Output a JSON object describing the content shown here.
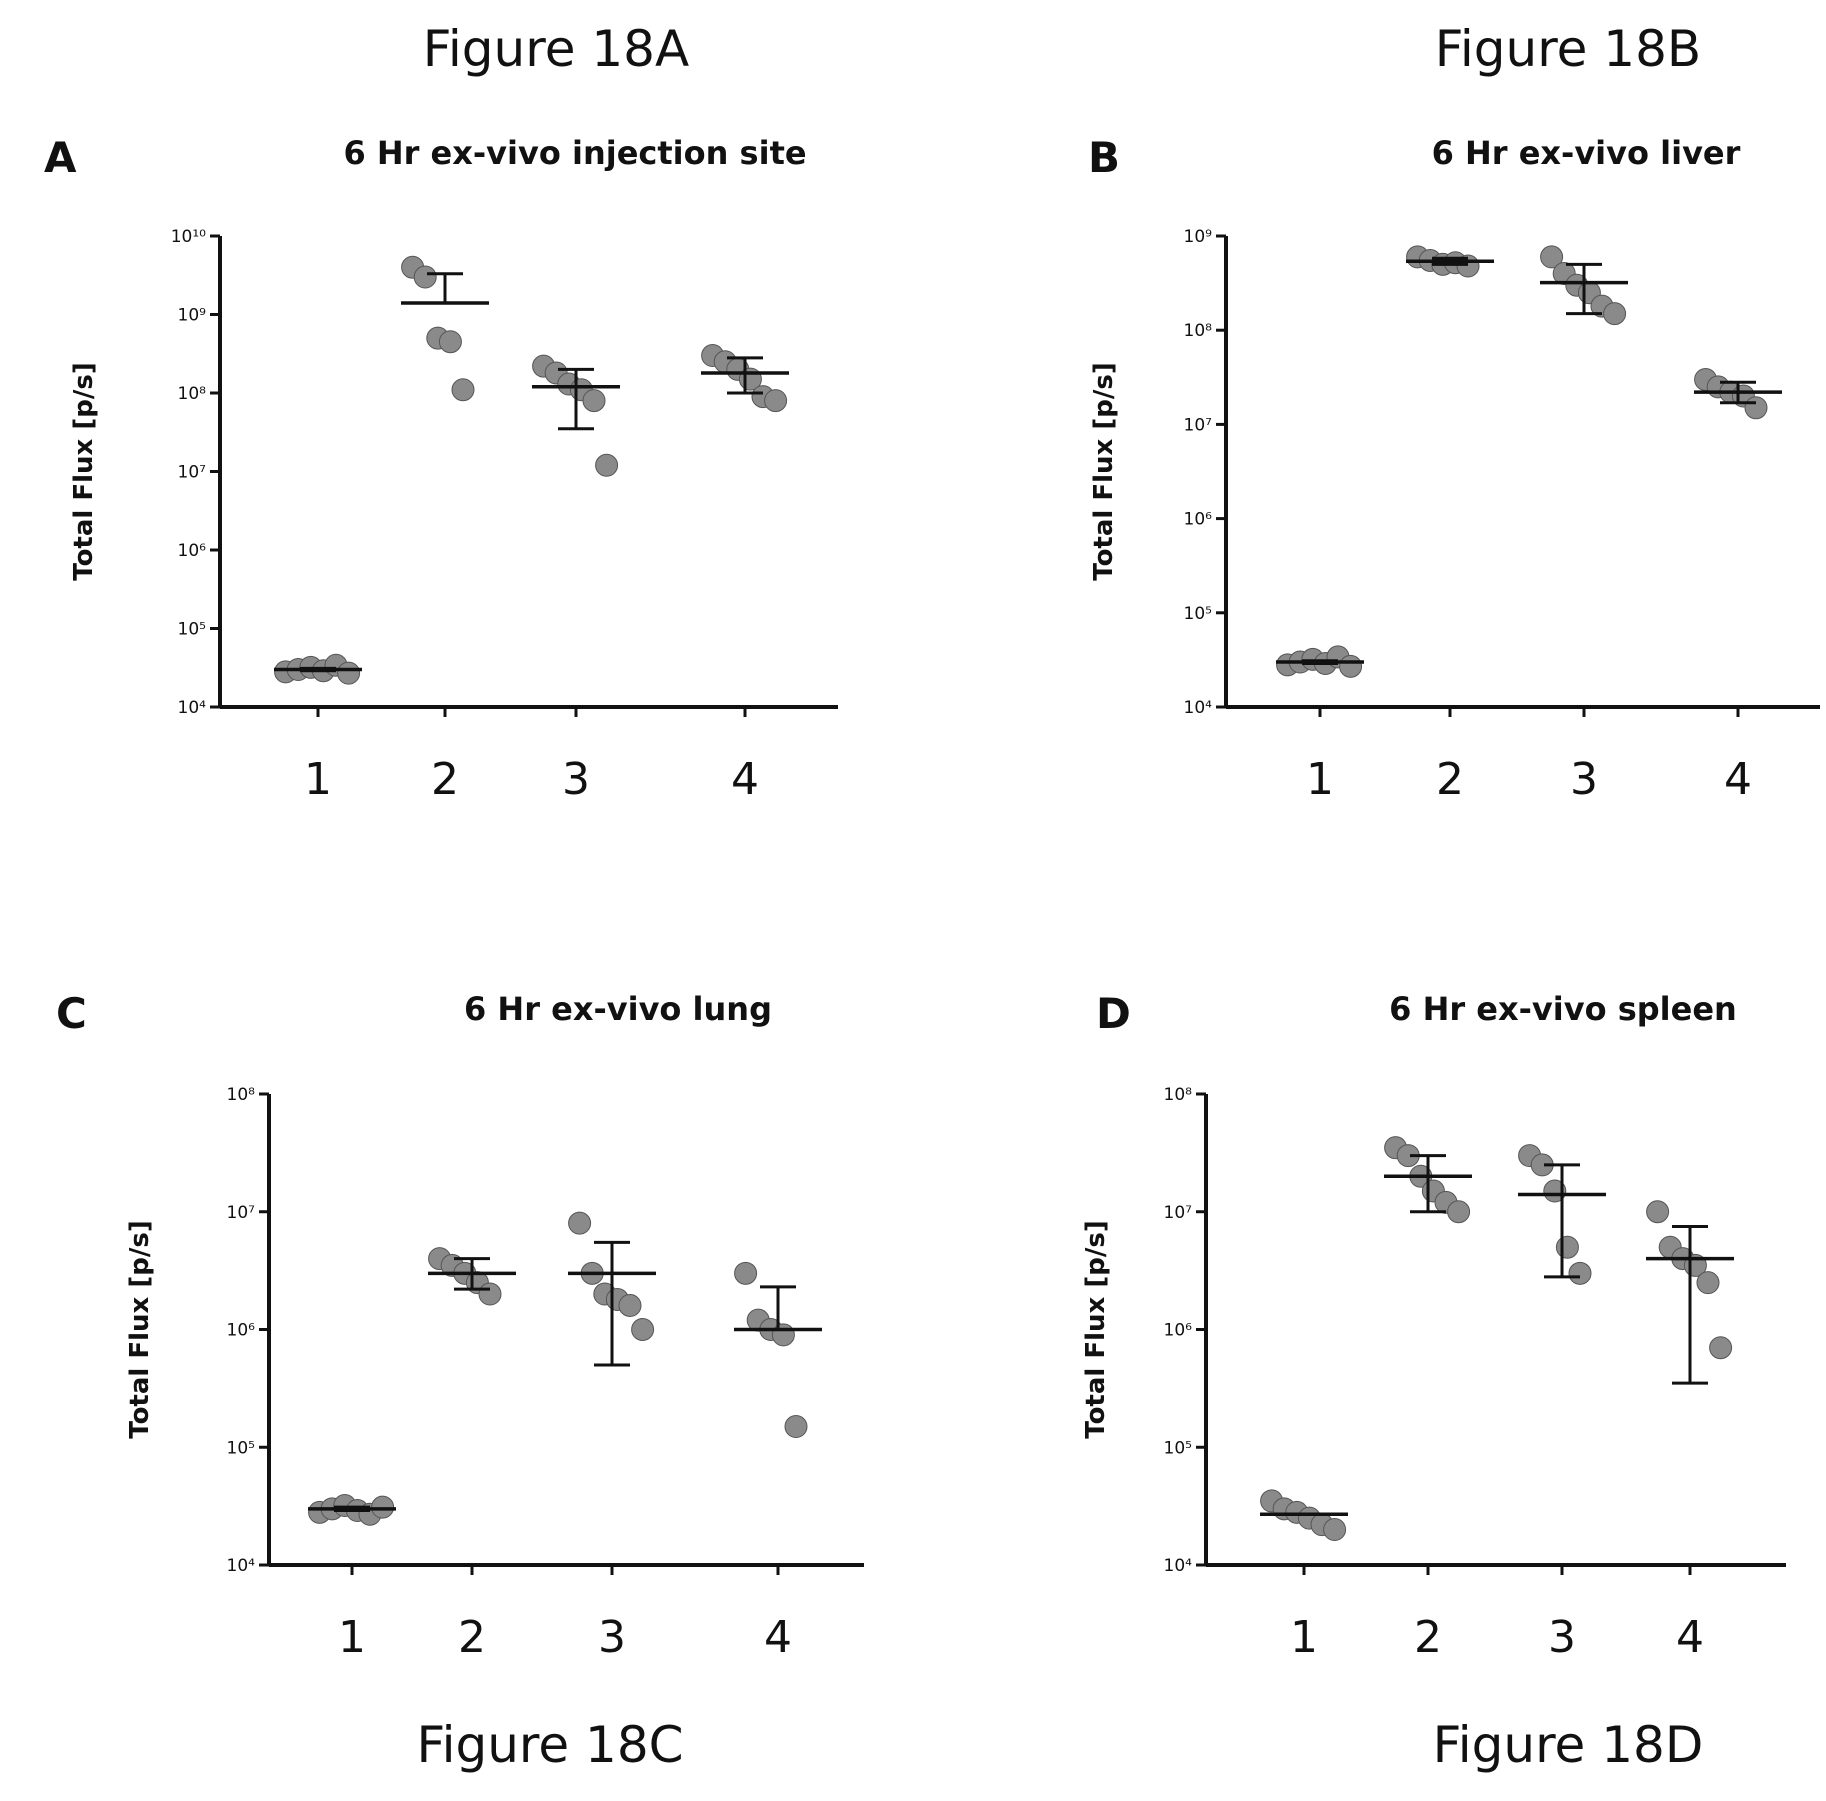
{
  "captions": [
    "Figure 18A",
    "Figure 18B",
    "Figure 18C",
    "Figure 18D"
  ],
  "chart_data": [
    {
      "type": "scatter",
      "panel": "A",
      "title": "6 Hr ex-vivo injection site",
      "ylabel": "Total Flux [p/s]",
      "yscale": "log",
      "ylim": [
        10000,
        10000000000
      ],
      "yticks": [
        "10⁴",
        "10⁵",
        "10⁶",
        "10⁷",
        "10⁸",
        "10⁹",
        "10¹⁰"
      ],
      "categories": [
        "1",
        "2",
        "3",
        "4"
      ],
      "groups": [
        {
          "points": [
            28000,
            30000,
            32000,
            29000,
            34000,
            27000
          ],
          "mean": 30000,
          "err": [
            29000,
            31000
          ]
        },
        {
          "points": [
            4000000000,
            3000000000,
            500000000,
            450000000,
            110000000
          ],
          "mean": 1400000000,
          "err": [
            1400000000,
            3300000000
          ]
        },
        {
          "points": [
            220000000,
            180000000,
            130000000,
            110000000,
            80000000,
            12000000
          ],
          "mean": 120000000,
          "err": [
            35000000,
            200000000
          ]
        },
        {
          "points": [
            300000000,
            250000000,
            200000000,
            150000000,
            90000000,
            80000000
          ],
          "mean": 180000000,
          "err": [
            100000000,
            280000000
          ]
        }
      ],
      "grid": false
    },
    {
      "type": "scatter",
      "panel": "B",
      "title": "6 Hr ex-vivo liver",
      "ylabel": "Total Flux [p/s]",
      "yscale": "log",
      "ylim": [
        10000,
        1000000000
      ],
      "yticks": [
        "10⁴",
        "10⁵",
        "10⁶",
        "10⁷",
        "10⁸",
        "10⁹"
      ],
      "categories": [
        "1",
        "2",
        "3",
        "4"
      ],
      "groups": [
        {
          "points": [
            28000,
            30000,
            32000,
            29000,
            34000,
            27000
          ],
          "mean": 30000,
          "err": [
            29000,
            31000
          ]
        },
        {
          "points": [
            600000000,
            550000000,
            500000000,
            520000000,
            480000000
          ],
          "mean": 540000000,
          "err": [
            500000000,
            580000000
          ]
        },
        {
          "points": [
            600000000,
            400000000,
            300000000,
            250000000,
            180000000,
            150000000
          ],
          "mean": 320000000,
          "err": [
            150000000,
            500000000
          ]
        },
        {
          "points": [
            30000000,
            25000000,
            22000000,
            20000000,
            15000000
          ],
          "mean": 22000000,
          "err": [
            17000000,
            28000000
          ]
        }
      ],
      "grid": false
    },
    {
      "type": "scatter",
      "panel": "C",
      "title": "6 Hr ex-vivo lung",
      "ylabel": "Total Flux [p/s]",
      "yscale": "log",
      "ylim": [
        10000,
        100000000
      ],
      "yticks": [
        "10⁴",
        "10⁵",
        "10⁶",
        "10⁷",
        "10⁸"
      ],
      "categories": [
        "1",
        "2",
        "3",
        "4"
      ],
      "groups": [
        {
          "points": [
            28000,
            30000,
            32000,
            29000,
            27000,
            31000
          ],
          "mean": 30000,
          "err": [
            29000,
            31000
          ]
        },
        {
          "points": [
            4000000,
            3500000,
            3000000,
            2500000,
            2000000
          ],
          "mean": 3000000,
          "err": [
            2200000,
            4000000
          ]
        },
        {
          "points": [
            8000000,
            3000000,
            2000000,
            1800000,
            1600000,
            1000000
          ],
          "mean": 3000000,
          "err": [
            500000,
            5500000
          ]
        },
        {
          "points": [
            3000000,
            1200000,
            1000000,
            900000,
            150000
          ],
          "mean": 1000000,
          "err": [
            1000000,
            2300000
          ]
        }
      ],
      "grid": false
    },
    {
      "type": "scatter",
      "panel": "D",
      "title": "6 Hr ex-vivo spleen",
      "ylabel": "Total Flux [p/s]",
      "yscale": "log",
      "ylim": [
        10000,
        100000000
      ],
      "yticks": [
        "10⁴",
        "10⁵",
        "10⁶",
        "10⁷",
        "10⁸"
      ],
      "categories": [
        "1",
        "2",
        "3",
        "4"
      ],
      "groups": [
        {
          "points": [
            35000,
            30000,
            28000,
            25000,
            22000,
            20000
          ],
          "mean": 27000,
          "err": [
            27000,
            27000
          ]
        },
        {
          "points": [
            35000000,
            30000000,
            20000000,
            15000000,
            12000000,
            10000000
          ],
          "mean": 20000000,
          "err": [
            10000000,
            30000000
          ]
        },
        {
          "points": [
            30000000,
            25000000,
            15000000,
            5000000,
            3000000
          ],
          "mean": 14000000,
          "err": [
            2800000,
            25000000
          ]
        },
        {
          "points": [
            10000000,
            5000000,
            4000000,
            3500000,
            2500000,
            700000
          ],
          "mean": 4000000,
          "err": [
            350000,
            7500000
          ]
        }
      ],
      "grid": false
    }
  ]
}
